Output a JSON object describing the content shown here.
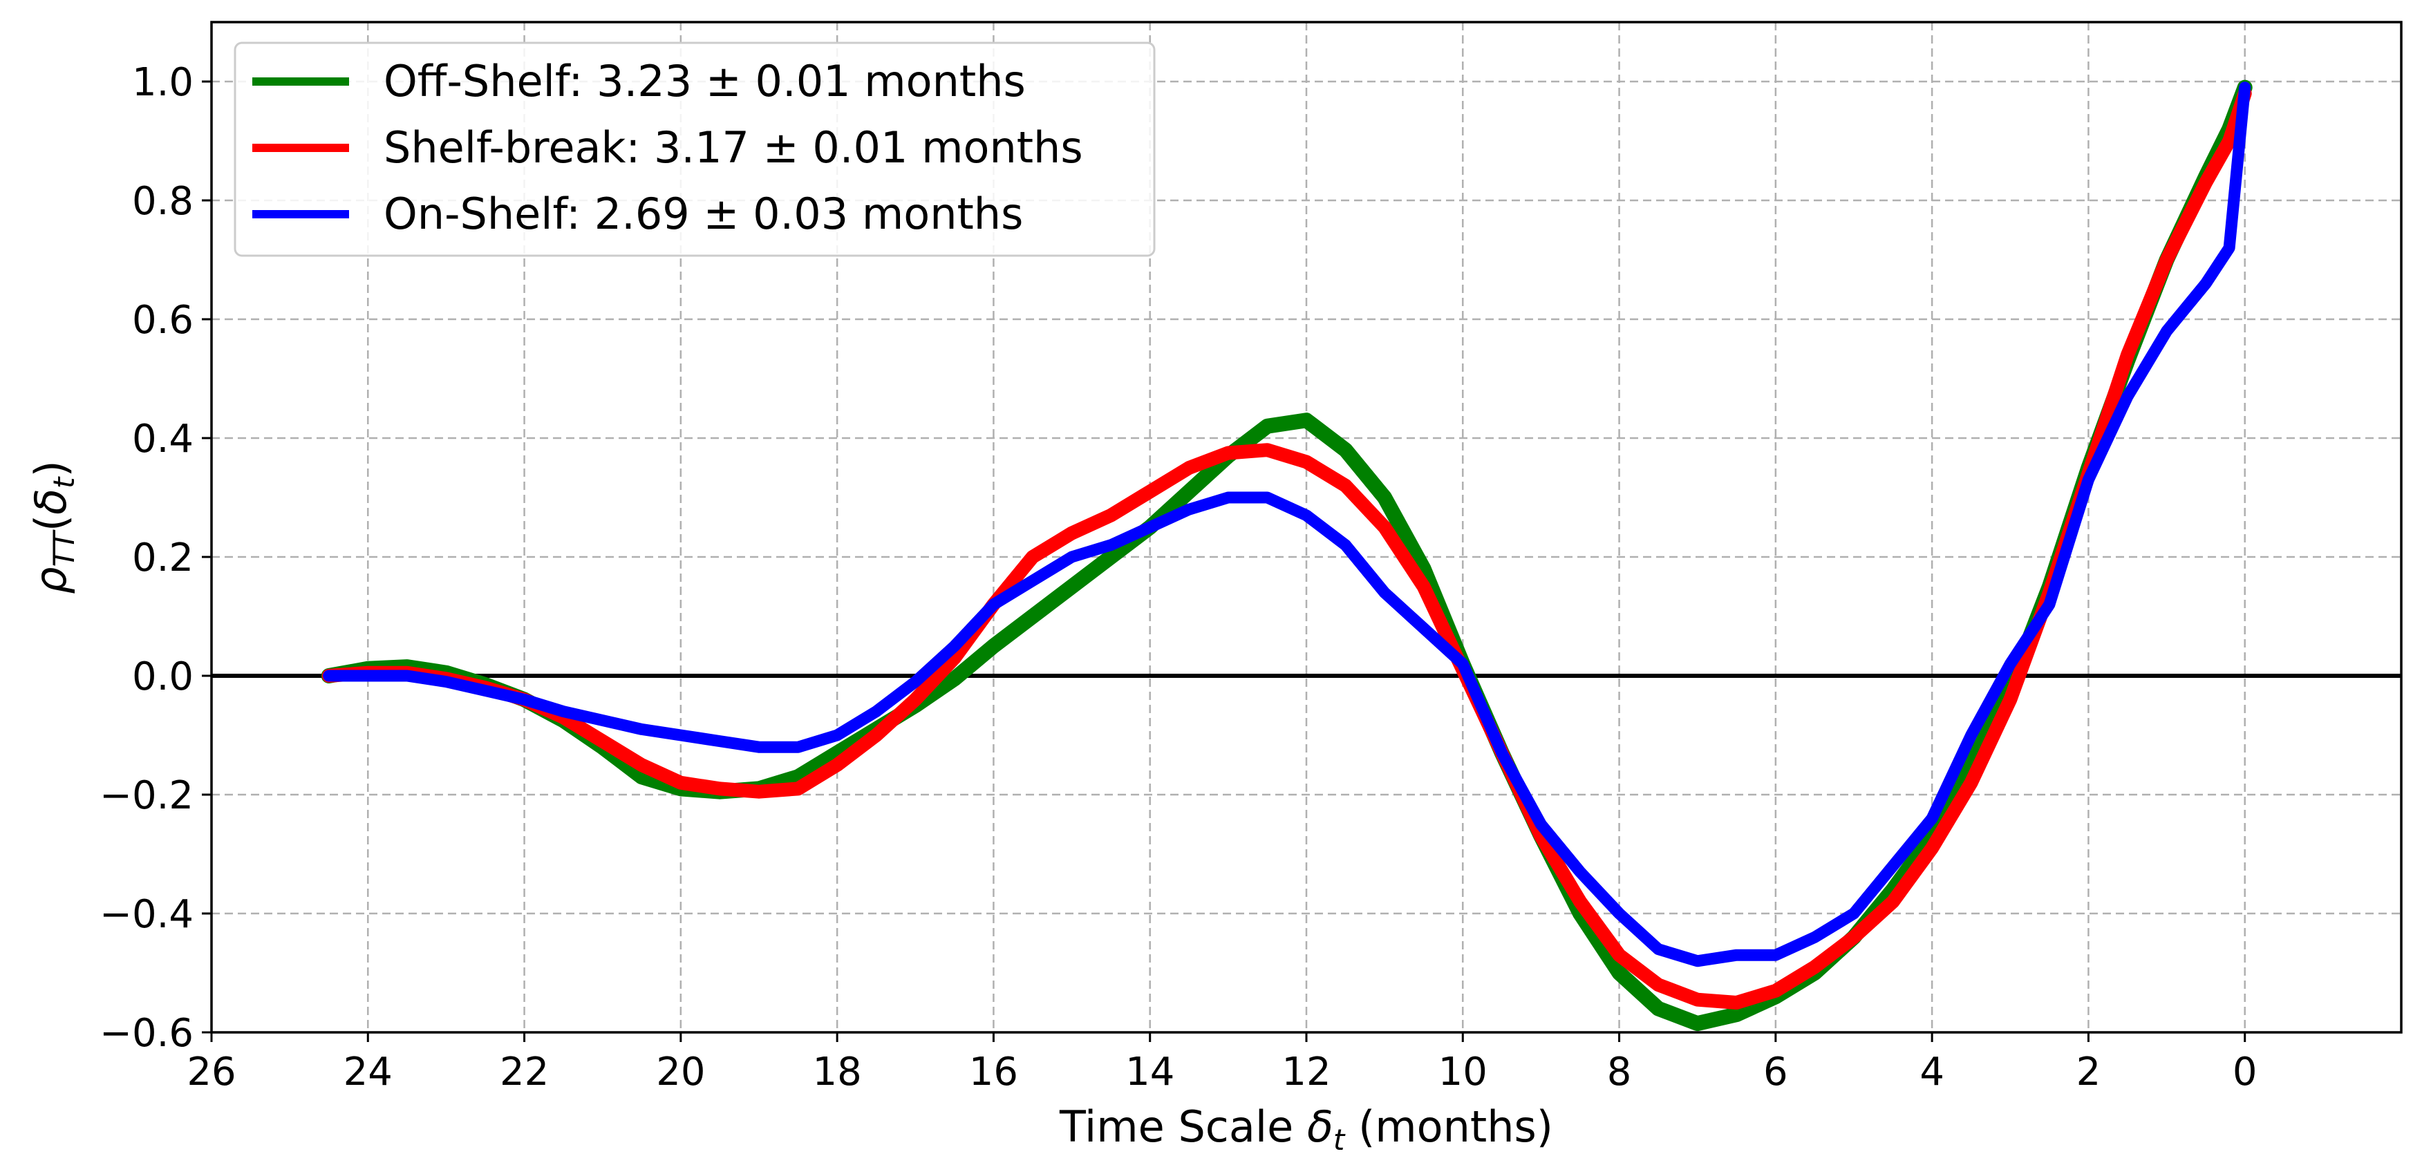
{
  "chart_data": {
    "type": "line",
    "xlabel_prefix": "Time Scale ",
    "xlabel_symbol": "δ",
    "xlabel_subscript": "t",
    "xlabel_suffix": " (months)",
    "ylabel_symbol": "ρ",
    "ylabel_subscript": "TT",
    "ylabel_open": "(",
    "ylabel_arg_symbol": "δ",
    "ylabel_arg_subscript": "t",
    "ylabel_close": ")",
    "xlim": [
      26,
      -2
    ],
    "ylim": [
      -0.6,
      1.1
    ],
    "x_inverted": true,
    "xticks": [
      26,
      24,
      22,
      20,
      18,
      16,
      14,
      12,
      10,
      8,
      6,
      4,
      2,
      0
    ],
    "xtick_labels": [
      "26",
      "24",
      "22",
      "20",
      "18",
      "16",
      "14",
      "12",
      "10",
      "8",
      "6",
      "4",
      "2",
      "0"
    ],
    "yticks": [
      -0.6,
      -0.4,
      -0.2,
      0.0,
      0.2,
      0.4,
      0.6,
      0.8,
      1.0
    ],
    "ytick_labels": [
      "−0.6",
      "−0.4",
      "−0.2",
      "0.0",
      "0.2",
      "0.4",
      "0.6",
      "0.8",
      "1.0"
    ],
    "grid": true,
    "zero_line": true,
    "legend_position": "upper-left",
    "series": [
      {
        "name": "Off-Shelf: 3.23 ± 0.01 months",
        "color": "#008000",
        "x": [
          24.5,
          24,
          23.5,
          23,
          22.5,
          22,
          21.5,
          21,
          20.5,
          20,
          19.5,
          19,
          18.5,
          18,
          17.5,
          17,
          16.5,
          16,
          15.5,
          15,
          14.5,
          14,
          13.5,
          13,
          12.5,
          12,
          11.5,
          11,
          10.5,
          10,
          9.5,
          9,
          8.5,
          8,
          7.5,
          7,
          6.5,
          6,
          5.5,
          5,
          4.5,
          4,
          3.5,
          3,
          2.5,
          2,
          1.5,
          1,
          0.5,
          0.2,
          0
        ],
        "y": [
          0.0,
          0.012,
          0.015,
          0.005,
          -0.015,
          -0.04,
          -0.075,
          -0.12,
          -0.17,
          -0.19,
          -0.195,
          -0.19,
          -0.17,
          -0.13,
          -0.09,
          -0.05,
          -0.005,
          0.05,
          0.1,
          0.15,
          0.2,
          0.25,
          0.31,
          0.37,
          0.42,
          0.43,
          0.38,
          0.3,
          0.18,
          0.02,
          -0.13,
          -0.27,
          -0.4,
          -0.5,
          -0.56,
          -0.585,
          -0.57,
          -0.54,
          -0.5,
          -0.44,
          -0.36,
          -0.27,
          -0.15,
          -0.02,
          0.15,
          0.35,
          0.53,
          0.7,
          0.84,
          0.92,
          0.99
        ]
      },
      {
        "name": "Shelf-break: 3.17 ± 0.01 months",
        "color": "#ff0000",
        "x": [
          24.5,
          24,
          23.5,
          23,
          22.5,
          22,
          21.5,
          21,
          20.5,
          20,
          19.5,
          19,
          18.5,
          18,
          17.5,
          17,
          16.5,
          16,
          15.5,
          15,
          14.5,
          14,
          13.5,
          13,
          12.5,
          12,
          11.5,
          11,
          10.5,
          10,
          9.5,
          9,
          8.5,
          8,
          7.5,
          7,
          6.5,
          6,
          5.5,
          5,
          4.5,
          4,
          3.5,
          3,
          2.5,
          2,
          1.5,
          1,
          0.5,
          0.2,
          0
        ],
        "y": [
          0.0,
          0.005,
          0.005,
          -0.005,
          -0.02,
          -0.04,
          -0.07,
          -0.11,
          -0.15,
          -0.18,
          -0.19,
          -0.195,
          -0.19,
          -0.15,
          -0.1,
          -0.04,
          0.03,
          0.12,
          0.2,
          0.24,
          0.27,
          0.31,
          0.35,
          0.375,
          0.38,
          0.36,
          0.32,
          0.25,
          0.15,
          0.01,
          -0.13,
          -0.27,
          -0.38,
          -0.47,
          -0.52,
          -0.545,
          -0.55,
          -0.53,
          -0.49,
          -0.44,
          -0.38,
          -0.29,
          -0.18,
          -0.04,
          0.14,
          0.34,
          0.54,
          0.7,
          0.83,
          0.9,
          0.98
        ]
      },
      {
        "name": "On-Shelf: 2.69 ± 0.03 months",
        "color": "#0000ff",
        "x": [
          24.5,
          24,
          23.5,
          23,
          22.5,
          22,
          21.5,
          21,
          20.5,
          20,
          19.5,
          19,
          18.5,
          18,
          17.5,
          17,
          16.5,
          16,
          15.5,
          15,
          14.5,
          14,
          13.5,
          13,
          12.5,
          12,
          11.5,
          11,
          10.5,
          10,
          9.5,
          9,
          8.5,
          8,
          7.5,
          7,
          6.5,
          6,
          5.5,
          5,
          4.5,
          4,
          3.5,
          3,
          2.5,
          2,
          1.5,
          1,
          0.5,
          0.2,
          0
        ],
        "y": [
          0.0,
          0.0,
          0.0,
          -0.01,
          -0.025,
          -0.04,
          -0.06,
          -0.075,
          -0.09,
          -0.1,
          -0.11,
          -0.12,
          -0.12,
          -0.1,
          -0.06,
          -0.01,
          0.05,
          0.12,
          0.16,
          0.2,
          0.22,
          0.25,
          0.28,
          0.3,
          0.3,
          0.27,
          0.22,
          0.14,
          0.08,
          0.02,
          -0.13,
          -0.25,
          -0.33,
          -0.4,
          -0.46,
          -0.48,
          -0.47,
          -0.47,
          -0.44,
          -0.4,
          -0.32,
          -0.24,
          -0.1,
          0.02,
          0.12,
          0.33,
          0.47,
          0.58,
          0.66,
          0.72,
          0.99
        ]
      }
    ]
  }
}
